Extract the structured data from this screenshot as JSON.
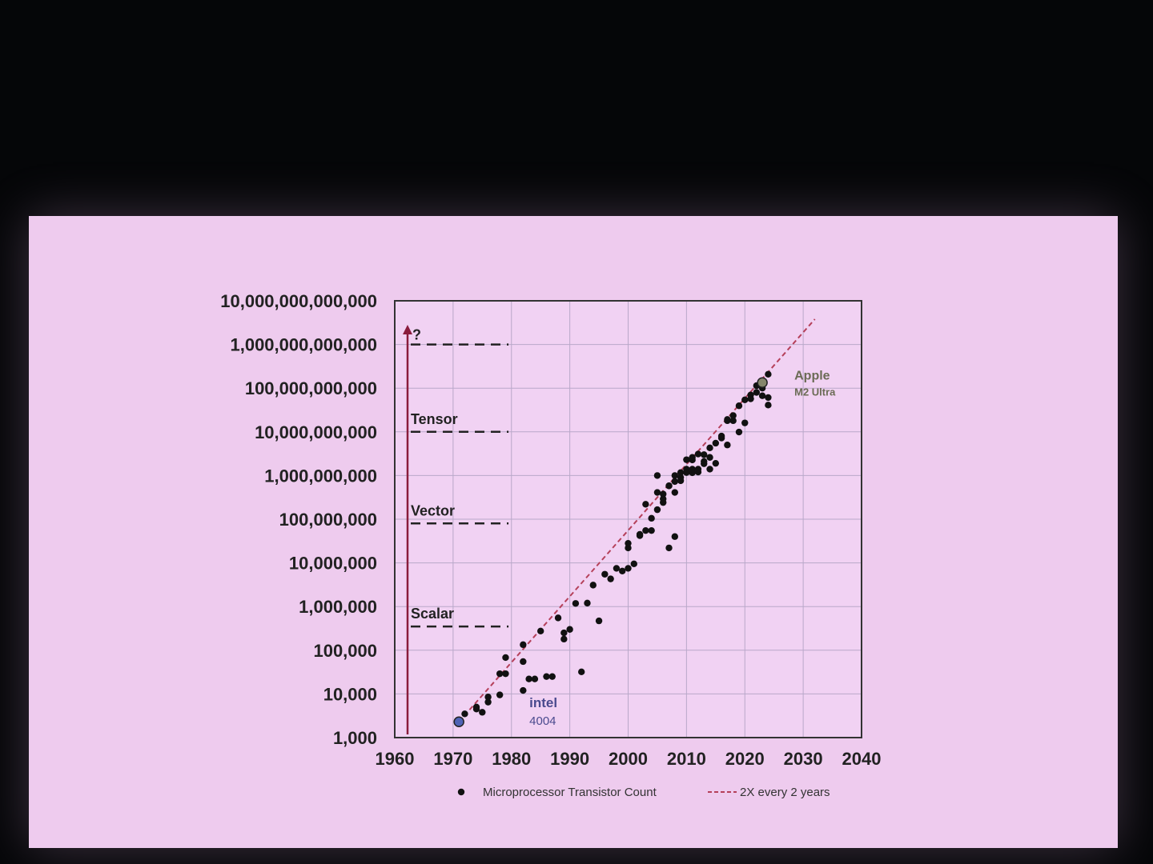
{
  "chart_data": {
    "type": "scatter",
    "x_ticks": [
      "1960",
      "1970",
      "1980",
      "1990",
      "2000",
      "2010",
      "2020",
      "2030",
      "2040"
    ],
    "xlim": [
      1960,
      2040
    ],
    "y_scale": "log",
    "y_ticks": [
      "1,000",
      "10,000",
      "100,000",
      "1,000,000",
      "10,000,000",
      "100,000,000",
      "1,000,000,000",
      "10,000,000,000",
      "100,000,000,000",
      "1,000,000,000,000",
      "10,000,000,000,000"
    ],
    "ylim": [
      1000,
      10000000000000
    ],
    "grid": true,
    "series": [
      {
        "name": "Microprocessor Transistor Count",
        "kind": "scatter",
        "color": "#111111",
        "points": [
          [
            1971,
            2300
          ],
          [
            1972,
            3500
          ],
          [
            1974,
            4500
          ],
          [
            1974,
            5000
          ],
          [
            1975,
            3800
          ],
          [
            1976,
            6500
          ],
          [
            1976,
            8500
          ],
          [
            1978,
            9500
          ],
          [
            1978,
            29000
          ],
          [
            1979,
            29000
          ],
          [
            1979,
            68000
          ],
          [
            1982,
            12000
          ],
          [
            1982,
            134000
          ],
          [
            1982,
            55000
          ],
          [
            1983,
            22000
          ],
          [
            1984,
            22000
          ],
          [
            1985,
            275000
          ],
          [
            1986,
            25000
          ],
          [
            1987,
            25000
          ],
          [
            1988,
            550000
          ],
          [
            1989,
            250000
          ],
          [
            1989,
            180000
          ],
          [
            1990,
            300000
          ],
          [
            1991,
            1180000
          ],
          [
            1992,
            32000
          ],
          [
            1993,
            1200000
          ],
          [
            1994,
            3100000
          ],
          [
            1995,
            470000
          ],
          [
            1996,
            5500000
          ],
          [
            1997,
            4300000
          ],
          [
            1998,
            7500000
          ],
          [
            1999,
            6500000
          ],
          [
            2000,
            7500000
          ],
          [
            2000,
            22000000
          ],
          [
            2000,
            28000000
          ],
          [
            2001,
            9500000
          ],
          [
            2002,
            42000000
          ],
          [
            2002,
            45000000
          ],
          [
            2003,
            55000000
          ],
          [
            2003,
            220000000
          ],
          [
            2004,
            105000000
          ],
          [
            2004,
            55000000
          ],
          [
            2005,
            165000000
          ],
          [
            2005,
            410000000
          ],
          [
            2005,
            1000000000
          ],
          [
            2006,
            241000000
          ],
          [
            2006,
            291000000
          ],
          [
            2006,
            376000000
          ],
          [
            2007,
            22000000
          ],
          [
            2007,
            582000000
          ],
          [
            2007,
            580000000
          ],
          [
            2008,
            40000000
          ],
          [
            2008,
            410000000
          ],
          [
            2008,
            730000000
          ],
          [
            2008,
            1000000000
          ],
          [
            2009,
            904000000
          ],
          [
            2009,
            1170000000
          ],
          [
            2009,
            760000000
          ],
          [
            2010,
            1400000000
          ],
          [
            2010,
            2300000000
          ],
          [
            2010,
            1170000000
          ],
          [
            2011,
            2600000000
          ],
          [
            2011,
            1160000000
          ],
          [
            2011,
            2270000000
          ],
          [
            2011,
            1400000000
          ],
          [
            2012,
            1200000000
          ],
          [
            2012,
            1400000000
          ],
          [
            2012,
            3100000000
          ],
          [
            2013,
            3000000000
          ],
          [
            2013,
            2100000000
          ],
          [
            2013,
            1860000000
          ],
          [
            2014,
            1400000000
          ],
          [
            2014,
            4300000000
          ],
          [
            2014,
            2600000000
          ],
          [
            2015,
            5500000000
          ],
          [
            2015,
            1900000000
          ],
          [
            2016,
            7200000000
          ],
          [
            2016,
            8000000000
          ],
          [
            2017,
            18000000000
          ],
          [
            2017,
            19200000000
          ],
          [
            2017,
            5000000000
          ],
          [
            2018,
            18000000000
          ],
          [
            2018,
            23600000000
          ],
          [
            2019,
            9900000000
          ],
          [
            2019,
            39500000000
          ],
          [
            2020,
            54000000000
          ],
          [
            2020,
            16000000000
          ],
          [
            2021,
            57000000000
          ],
          [
            2021,
            70000000000
          ],
          [
            2022,
            80000000000
          ],
          [
            2022,
            114000000000
          ],
          [
            2023,
            134000000000
          ],
          [
            2023,
            100000000000
          ],
          [
            2023,
            67000000000
          ],
          [
            2024,
            208000000000
          ],
          [
            2024,
            61000000000
          ],
          [
            2024,
            41000000000
          ]
        ]
      },
      {
        "name": "2X every 2 years",
        "kind": "dashed-line",
        "color": "#b5405a",
        "points": [
          [
            1971,
            2300
          ],
          [
            2032,
            3800000000000
          ]
        ]
      }
    ],
    "highlights": [
      {
        "label": "intel",
        "sublabel": "4004",
        "x": 1971,
        "y": 2300,
        "color": "#4f63b5"
      },
      {
        "label": "Apple",
        "sublabel": "M2 Ultra",
        "x": 2023,
        "y": 134000000000,
        "color": "#85866b"
      }
    ],
    "levels": [
      {
        "label": "?",
        "y": 1000000000000
      },
      {
        "label": "Tensor",
        "y": 10000000000
      },
      {
        "label": "Vector",
        "y": 80000000
      },
      {
        "label": "Scalar",
        "y": 350000
      }
    ],
    "legend": {
      "position": "bottom-center",
      "items": [
        "Microprocessor Transistor Count",
        "2X every 2 years"
      ]
    },
    "grid_color": "#b9a8c9",
    "plot_bg": "#f1d2f3",
    "arrow_color": "#8a1c3c"
  }
}
